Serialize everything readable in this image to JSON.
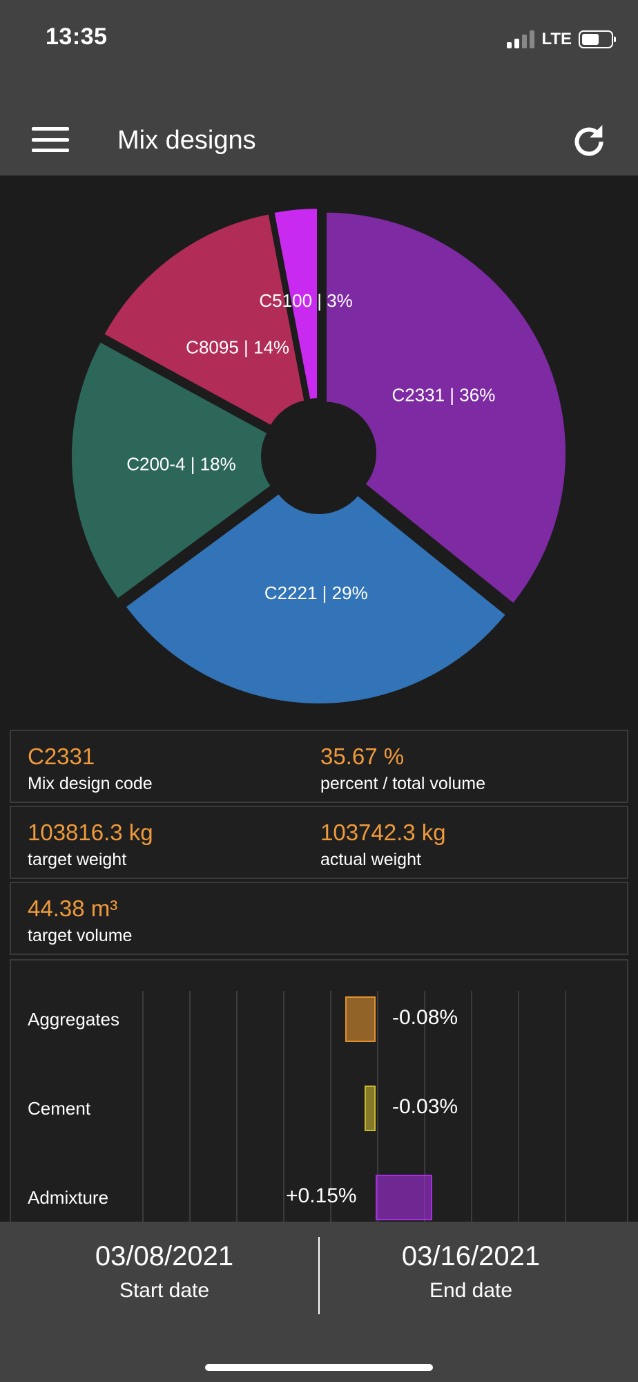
{
  "status": {
    "time": "13:35",
    "network": "LTE"
  },
  "header": {
    "title": "Mix designs",
    "menu_icon": "hamburger-menu-icon",
    "refresh_icon": "refresh-icon"
  },
  "chart_data": {
    "type": "pie",
    "donut": true,
    "exploded": true,
    "slices": [
      {
        "label": "C2331 | 36%",
        "name": "C2331",
        "value": 35.67,
        "color": "#7e2aa3"
      },
      {
        "label": "C2221 | 29%",
        "name": "C2221",
        "value": 29,
        "color": "#3274b7"
      },
      {
        "label": "C200-4 | 18%",
        "name": "C200-4",
        "value": 18,
        "color": "#2c6759"
      },
      {
        "label": "C8095 | 14%",
        "name": "C8095",
        "value": 14,
        "color": "#b22c58"
      },
      {
        "label": "C5100 | 3%",
        "name": "C5100",
        "value": 3,
        "color": "#c92af0"
      }
    ]
  },
  "details": {
    "code_value": "C2331",
    "code_label": "Mix design code",
    "percent_value": "35.67 %",
    "percent_label": "percent / total volume",
    "target_weight_value": "103816.3 kg",
    "target_weight_label": "target weight",
    "actual_weight_value": "103742.3 kg",
    "actual_weight_label": "actual weight",
    "target_volume_value": "44.38 m³",
    "target_volume_label": "target volume"
  },
  "deviation_bars": [
    {
      "label": "Aggregates",
      "value_text": "-0.08%",
      "value": -0.08,
      "color": "#e0912f"
    },
    {
      "label": "Cement",
      "value_text": "-0.03%",
      "value": -0.03,
      "color": "#c9b82e"
    },
    {
      "label": "Admixture",
      "value_text": "+0.15%",
      "value": 0.15,
      "color": "#a52ee0"
    }
  ],
  "dates": {
    "start_value": "03/08/2021",
    "start_label": "Start date",
    "end_value": "03/16/2021",
    "end_label": "End date"
  }
}
